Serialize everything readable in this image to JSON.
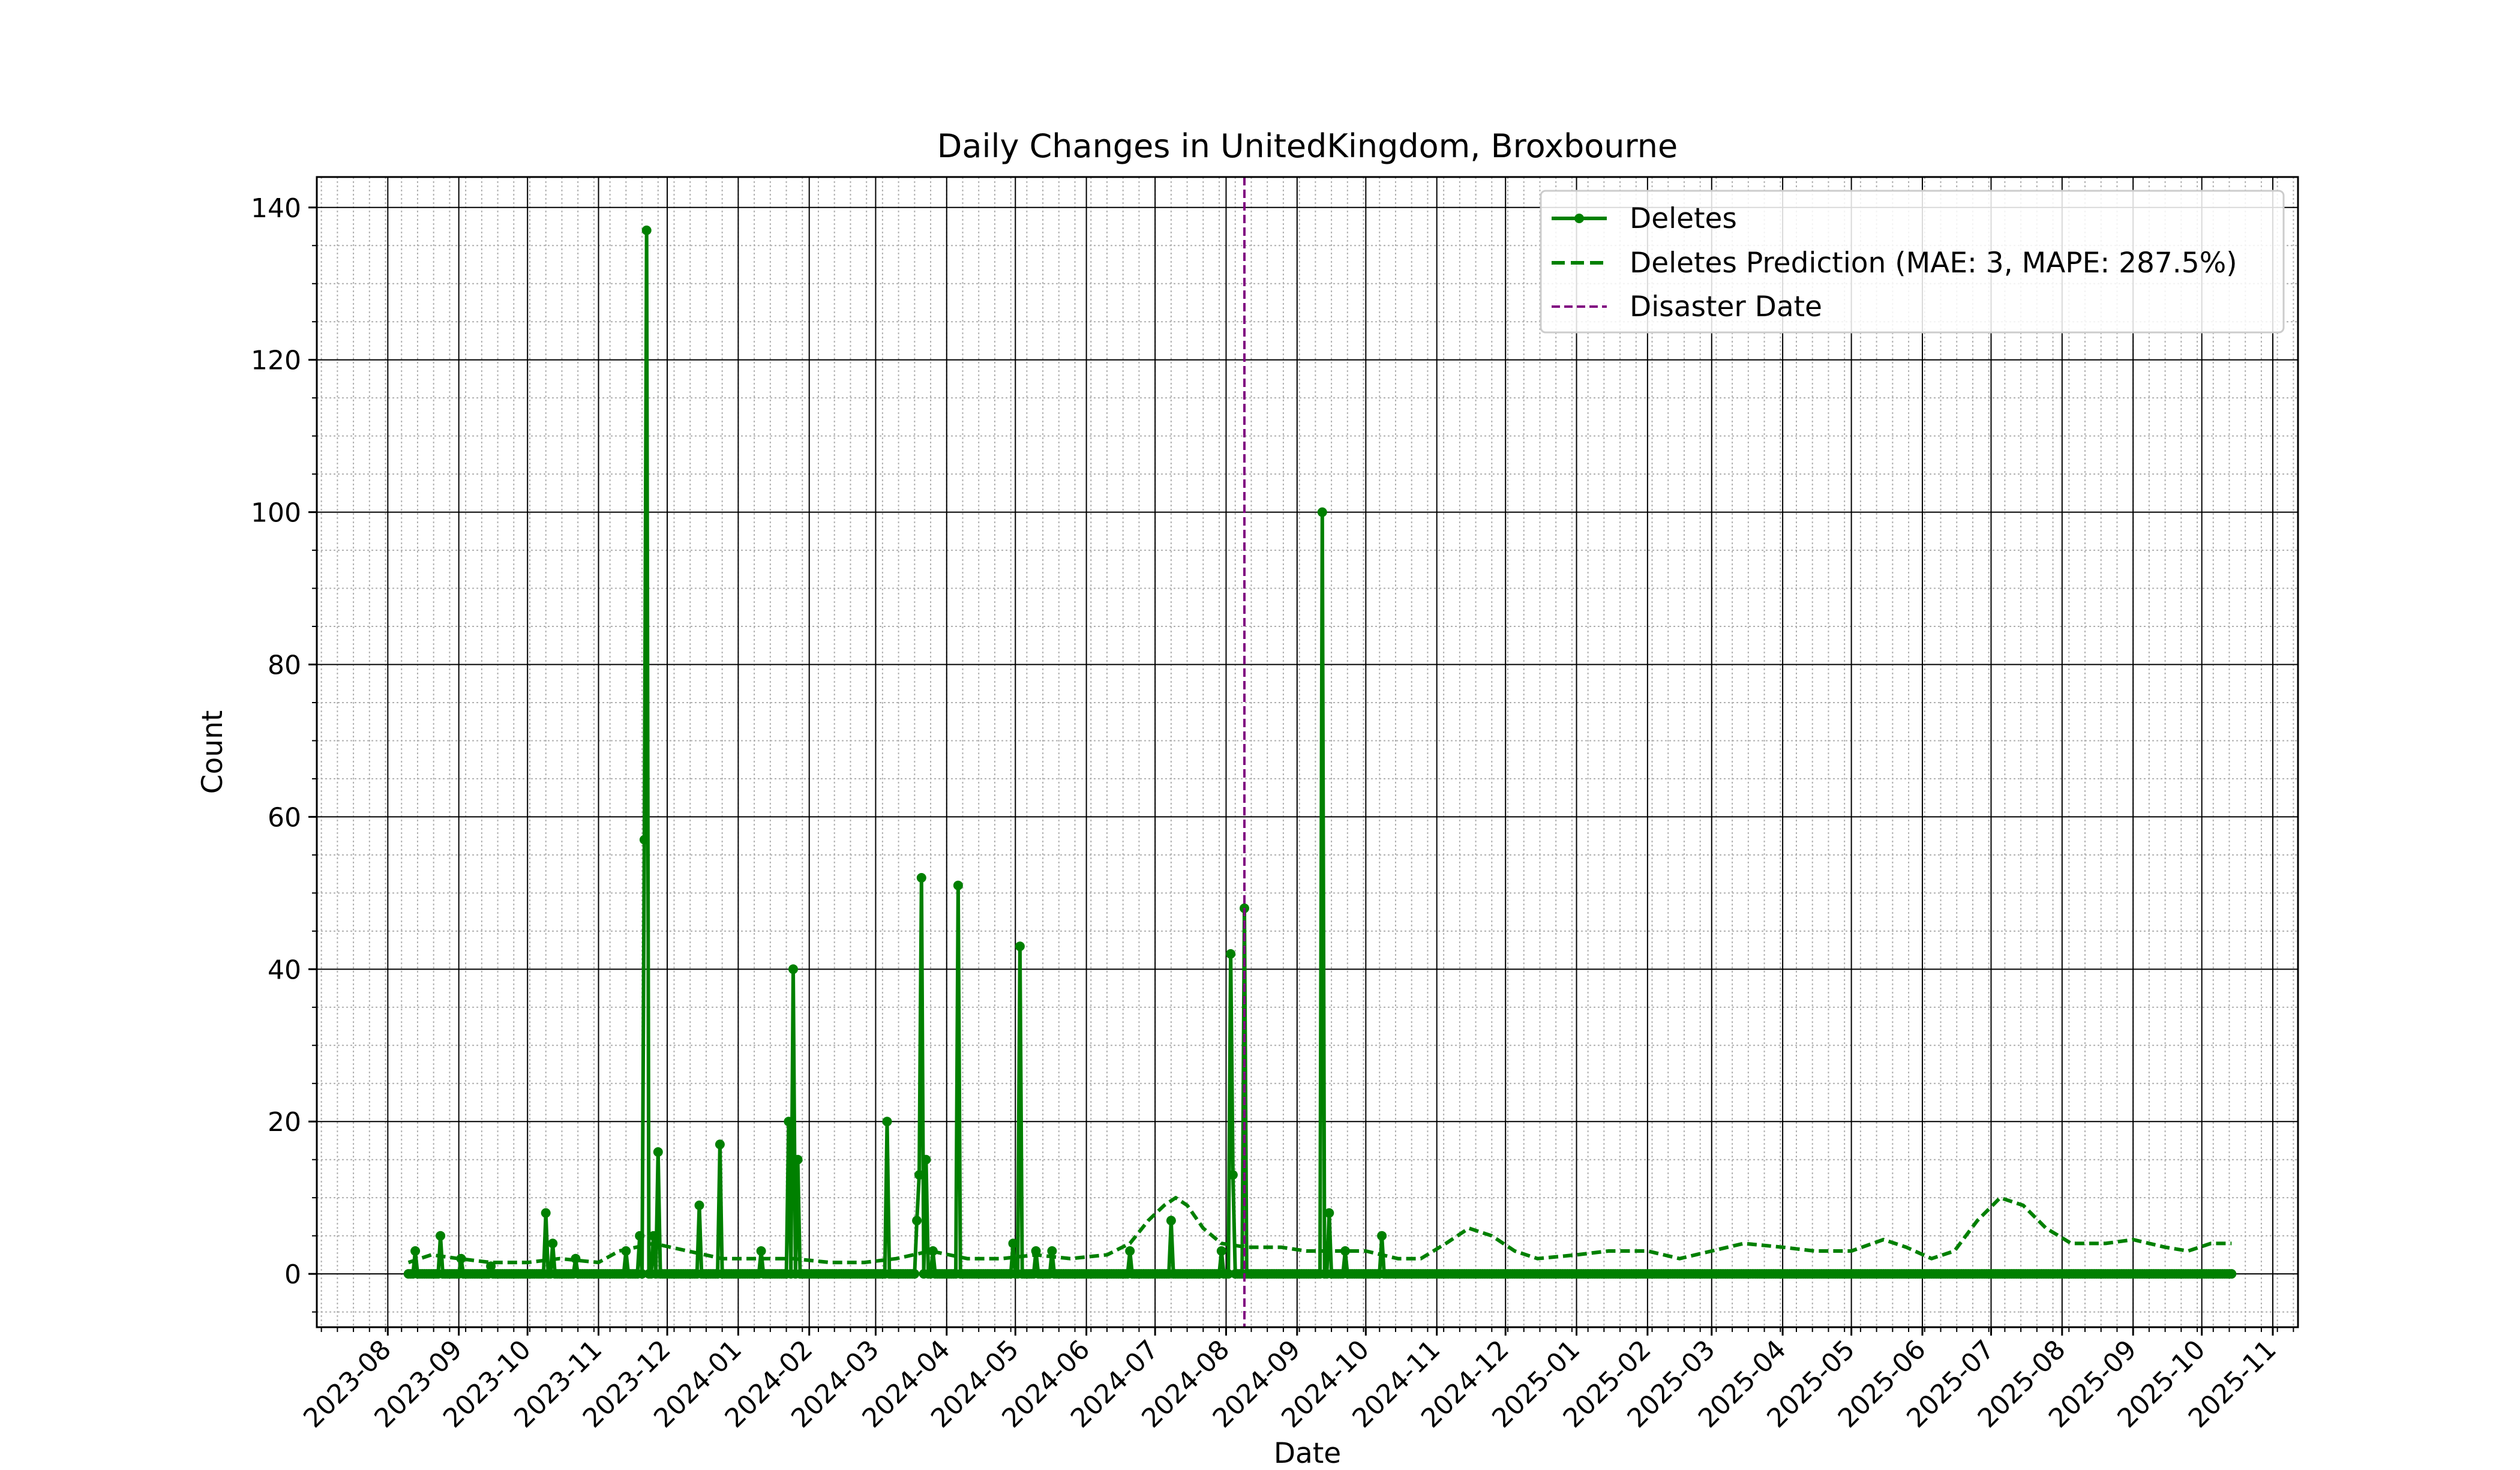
{
  "chart_data": {
    "type": "line",
    "title": "Daily Changes in UnitedKingdom, Broxbourne",
    "xlabel": "Date",
    "ylabel": "Count",
    "xlim": [
      "2023-07-01",
      "2025-11-12"
    ],
    "ylim": [
      -7,
      144
    ],
    "yticks": [
      0,
      20,
      40,
      60,
      80,
      100,
      120,
      140
    ],
    "xticks": [
      "2023-08",
      "2023-09",
      "2023-10",
      "2023-11",
      "2023-12",
      "2024-01",
      "2024-02",
      "2024-03",
      "2024-04",
      "2024-05",
      "2024-06",
      "2024-07",
      "2024-08",
      "2024-09",
      "2024-10",
      "2024-11",
      "2024-12",
      "2025-01",
      "2025-02",
      "2025-03",
      "2025-04",
      "2025-05",
      "2025-06",
      "2025-07",
      "2025-08",
      "2025-09",
      "2025-10",
      "2025-11"
    ],
    "grid": true,
    "legend_position": "upper right",
    "colors": {
      "deletes": "#008000",
      "prediction": "#008000",
      "disaster": "#800080"
    },
    "series": [
      {
        "name": "Deletes",
        "style": "solid line with circle markers",
        "start_date": "2023-08-10",
        "end_date": "2025-10-14",
        "baseline": 0,
        "spikes": [
          [
            "2023-08-13",
            3
          ],
          [
            "2023-08-24",
            5
          ],
          [
            "2023-09-02",
            2
          ],
          [
            "2023-09-15",
            1
          ],
          [
            "2023-10-09",
            8
          ],
          [
            "2023-10-12",
            4
          ],
          [
            "2023-10-22",
            2
          ],
          [
            "2023-11-13",
            3
          ],
          [
            "2023-11-19",
            5
          ],
          [
            "2023-11-21",
            57
          ],
          [
            "2023-11-22",
            137
          ],
          [
            "2023-11-25",
            5
          ],
          [
            "2023-11-27",
            16
          ],
          [
            "2023-12-15",
            9
          ],
          [
            "2023-12-24",
            17
          ],
          [
            "2024-01-11",
            3
          ],
          [
            "2024-01-23",
            20
          ],
          [
            "2024-01-25",
            40
          ],
          [
            "2024-01-27",
            15
          ],
          [
            "2024-03-06",
            20
          ],
          [
            "2024-03-19",
            7
          ],
          [
            "2024-03-20",
            13
          ],
          [
            "2024-03-21",
            52
          ],
          [
            "2024-03-23",
            15
          ],
          [
            "2024-03-26",
            3
          ],
          [
            "2024-04-06",
            51
          ],
          [
            "2024-04-30",
            4
          ],
          [
            "2024-05-03",
            43
          ],
          [
            "2024-05-10",
            3
          ],
          [
            "2024-05-17",
            3
          ],
          [
            "2024-06-20",
            3
          ],
          [
            "2024-07-08",
            7
          ],
          [
            "2024-07-30",
            3
          ],
          [
            "2024-08-03",
            42
          ],
          [
            "2024-08-04",
            13
          ],
          [
            "2024-08-09",
            48
          ],
          [
            "2024-09-12",
            100
          ],
          [
            "2024-09-15",
            8
          ],
          [
            "2024-09-22",
            3
          ],
          [
            "2024-10-08",
            5
          ]
        ]
      },
      {
        "name": "Deletes Prediction (MAE: 3, MAPE: 287.5%)",
        "style": "dashed line",
        "points": [
          [
            "2023-08-10",
            1.5
          ],
          [
            "2023-08-20",
            2.5
          ],
          [
            "2023-09-01",
            2
          ],
          [
            "2023-09-15",
            1.5
          ],
          [
            "2023-10-01",
            1.5
          ],
          [
            "2023-10-15",
            2
          ],
          [
            "2023-11-01",
            1.5
          ],
          [
            "2023-11-10",
            3
          ],
          [
            "2023-11-25",
            4
          ],
          [
            "2023-12-10",
            3
          ],
          [
            "2023-12-25",
            2
          ],
          [
            "2024-01-10",
            2
          ],
          [
            "2024-01-25",
            2
          ],
          [
            "2024-02-10",
            1.5
          ],
          [
            "2024-02-25",
            1.5
          ],
          [
            "2024-03-10",
            2
          ],
          [
            "2024-03-25",
            3
          ],
          [
            "2024-04-10",
            2
          ],
          [
            "2024-04-25",
            2
          ],
          [
            "2024-05-10",
            2.5
          ],
          [
            "2024-05-25",
            2
          ],
          [
            "2024-06-10",
            2.5
          ],
          [
            "2024-06-20",
            4
          ],
          [
            "2024-06-28",
            7
          ],
          [
            "2024-07-05",
            9
          ],
          [
            "2024-07-10",
            10
          ],
          [
            "2024-07-15",
            9
          ],
          [
            "2024-07-22",
            6
          ],
          [
            "2024-07-30",
            4
          ],
          [
            "2024-08-10",
            3.5
          ],
          [
            "2024-08-25",
            3.5
          ],
          [
            "2024-09-05",
            3
          ],
          [
            "2024-09-20",
            3
          ],
          [
            "2024-10-01",
            3
          ],
          [
            "2024-10-15",
            2
          ],
          [
            "2024-10-25",
            2
          ],
          [
            "2024-11-05",
            4
          ],
          [
            "2024-11-15",
            6
          ],
          [
            "2024-11-25",
            5
          ],
          [
            "2024-12-05",
            3
          ],
          [
            "2024-12-15",
            2
          ],
          [
            "2025-01-01",
            2.5
          ],
          [
            "2025-01-15",
            3
          ],
          [
            "2025-02-01",
            3
          ],
          [
            "2025-02-15",
            2
          ],
          [
            "2025-03-01",
            3
          ],
          [
            "2025-03-15",
            4
          ],
          [
            "2025-04-01",
            3.5
          ],
          [
            "2025-04-15",
            3
          ],
          [
            "2025-05-01",
            3
          ],
          [
            "2025-05-15",
            4.5
          ],
          [
            "2025-05-25",
            3.5
          ],
          [
            "2025-06-05",
            2
          ],
          [
            "2025-06-15",
            3
          ],
          [
            "2025-06-25",
            7
          ],
          [
            "2025-07-05",
            10
          ],
          [
            "2025-07-15",
            9
          ],
          [
            "2025-07-25",
            6
          ],
          [
            "2025-08-05",
            4
          ],
          [
            "2025-08-20",
            4
          ],
          [
            "2025-09-01",
            4.5
          ],
          [
            "2025-09-15",
            3.5
          ],
          [
            "2025-09-25",
            3
          ],
          [
            "2025-10-05",
            4
          ],
          [
            "2025-10-14",
            4
          ]
        ]
      },
      {
        "name": "Disaster Date",
        "style": "dashed vertical line",
        "x": "2024-08-09"
      }
    ]
  }
}
